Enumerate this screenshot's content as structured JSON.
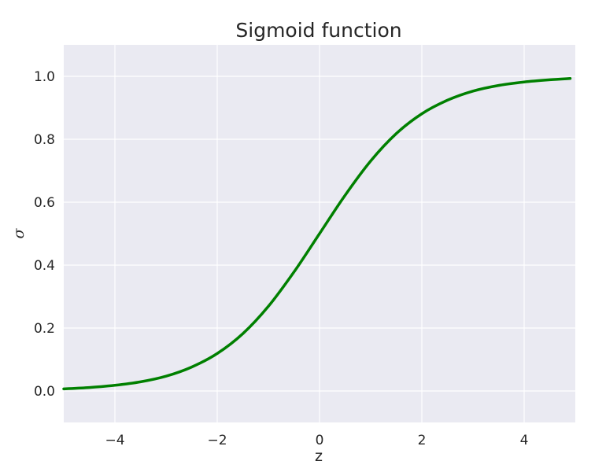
{
  "chart_data": {
    "type": "line",
    "title": "Sigmoid function",
    "xlabel": "z",
    "ylabel": "σ",
    "xlim": [
      -5,
      5
    ],
    "ylim": [
      -0.1,
      1.1
    ],
    "x_ticks": [
      -4,
      -2,
      0,
      2,
      4
    ],
    "x_tick_labels": [
      "−4",
      "−2",
      "0",
      "2",
      "4"
    ],
    "y_ticks": [
      0.0,
      0.2,
      0.4,
      0.6,
      0.8,
      1.0
    ],
    "y_tick_labels": [
      "0.0",
      "0.2",
      "0.4",
      "0.6",
      "0.8",
      "1.0"
    ],
    "grid": true,
    "background_color": "#EAEAF2",
    "grid_color": "#FFFFFF",
    "series": [
      {
        "color": "#008000",
        "x": [
          -5.0,
          -4.5,
          -4.0,
          -3.5,
          -3.0,
          -2.5,
          -2.0,
          -1.5,
          -1.0,
          -0.5,
          0.0,
          0.5,
          1.0,
          1.5,
          2.0,
          2.5,
          3.0,
          3.5,
          4.0,
          4.5,
          4.9
        ],
        "y": [
          0.0067,
          0.011,
          0.018,
          0.029,
          0.047,
          0.076,
          0.119,
          0.182,
          0.269,
          0.378,
          0.5,
          0.622,
          0.731,
          0.818,
          0.881,
          0.924,
          0.953,
          0.971,
          0.982,
          0.989,
          0.993
        ]
      }
    ]
  }
}
